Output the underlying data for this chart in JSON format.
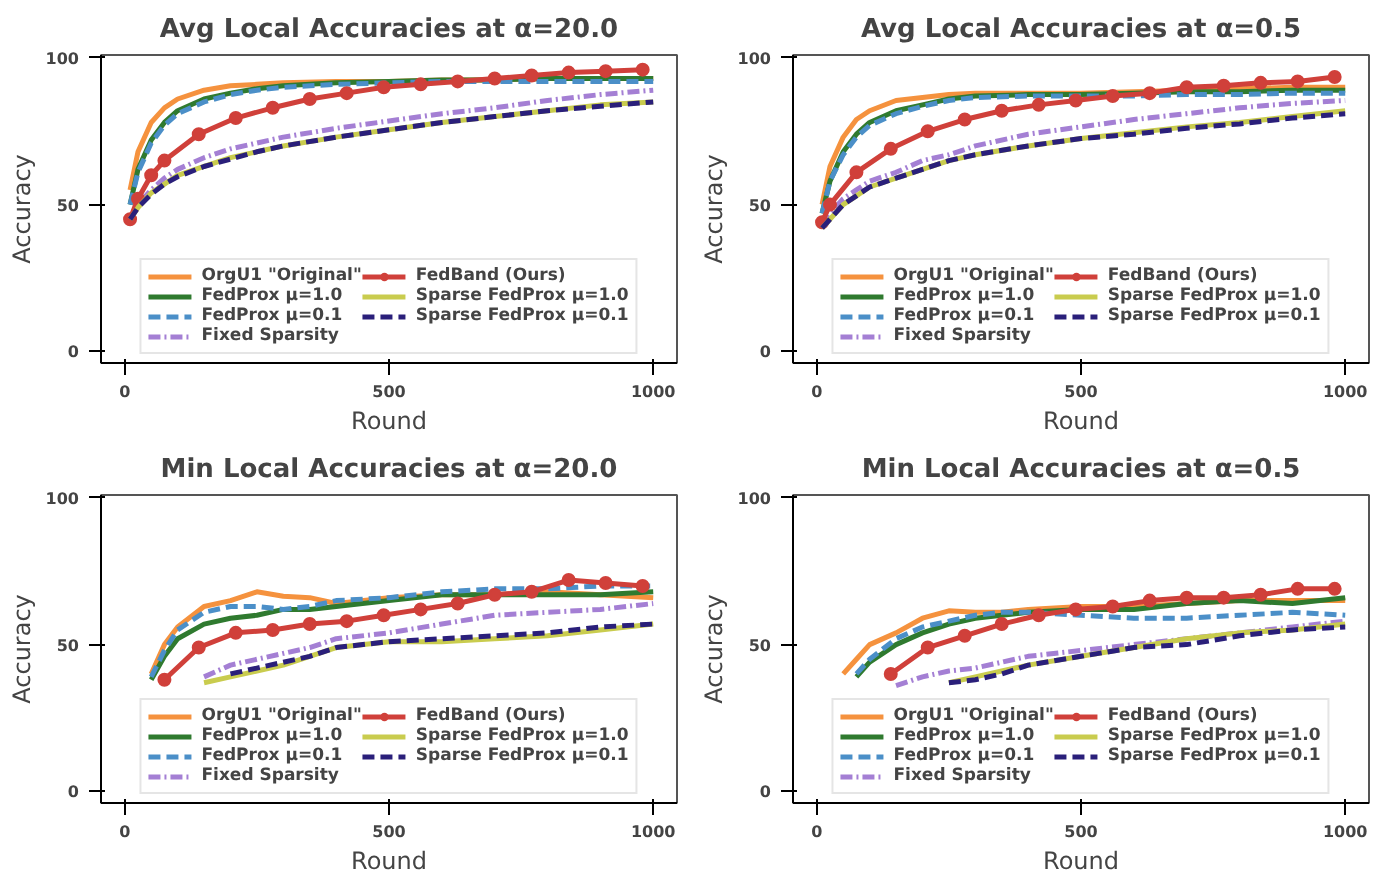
{
  "chart_data": [
    {
      "type": "line",
      "title": "Avg Local Accuracies at α=20.0",
      "xlabel": "Round",
      "ylabel": "Accuracy",
      "xlim": [
        -45,
        1045
      ],
      "ylim": [
        -4,
        101
      ],
      "xticks": [
        0,
        500,
        1000
      ],
      "yticks": [
        0,
        50,
        100
      ],
      "grid": false,
      "legend": "bottom",
      "x": [
        10,
        25,
        50,
        75,
        100,
        150,
        200,
        250,
        300,
        400,
        500,
        600,
        700,
        800,
        900,
        1000
      ],
      "series": [
        {
          "name": "OrgU1 \"Original\"",
          "color": "#f5923e",
          "line_style": "solid",
          "values": [
            55,
            68,
            78,
            83,
            86,
            89,
            90.5,
            91,
            91.5,
            92,
            92,
            92.5,
            92.5,
            93,
            93,
            93
          ]
        },
        {
          "name": "FedProx μ=1.0",
          "color": "#2f7a2f",
          "line_style": "solid",
          "values": [
            50,
            62,
            72,
            78,
            82,
            86,
            88,
            89.5,
            90.5,
            91.5,
            92,
            92.5,
            92.5,
            93,
            93,
            93
          ]
        },
        {
          "name": "FedProx μ=0.1",
          "color": "#4b8fc8",
          "line_style": "dashed",
          "values": [
            50,
            61,
            71,
            77,
            81,
            85,
            87.5,
            89,
            90,
            91,
            91.5,
            92,
            92,
            92,
            92,
            92
          ]
        },
        {
          "name": "Fixed Sparsity",
          "color": "#a47fd4",
          "line_style": "dashdot",
          "values": [
            45,
            50,
            55,
            59,
            62,
            66,
            69,
            71,
            73,
            76,
            78.5,
            81,
            83,
            85.5,
            87.5,
            89
          ]
        },
        {
          "name": "FedBand (Ours)",
          "color": "#d0403a",
          "line_style": "solid",
          "marker": "circle",
          "x": [
            10,
            25,
            50,
            75,
            140,
            210,
            280,
            350,
            420,
            490,
            560,
            630,
            700,
            770,
            840,
            910,
            980
          ],
          "values": [
            45,
            52,
            60,
            65,
            74,
            79.5,
            83,
            86,
            88,
            90,
            91,
            92,
            93,
            94,
            95,
            95.5,
            96
          ]
        },
        {
          "name": "Sparse FedProx μ=1.0",
          "color": "#c9cc4e",
          "line_style": "solid",
          "values": [
            45,
            49,
            54,
            57,
            60,
            63,
            66,
            68,
            70,
            73,
            75.5,
            78,
            80,
            82,
            84,
            85
          ]
        },
        {
          "name": "Sparse FedProx μ=0.1",
          "color": "#2a1f7a",
          "line_style": "dashed",
          "values": [
            45,
            49,
            53.5,
            57,
            59.5,
            63,
            65.5,
            68,
            70,
            73,
            75.5,
            78,
            80,
            82,
            83.5,
            85
          ]
        }
      ]
    },
    {
      "type": "line",
      "title": "Avg Local Accuracies at α=0.5",
      "xlabel": "Round",
      "ylabel": "Accuracy",
      "xlim": [
        -45,
        1045
      ],
      "ylim": [
        -4,
        101
      ],
      "xticks": [
        0,
        500,
        1000
      ],
      "yticks": [
        0,
        50,
        100
      ],
      "grid": false,
      "legend": "bottom",
      "x": [
        10,
        25,
        50,
        75,
        100,
        150,
        200,
        250,
        300,
        400,
        500,
        600,
        700,
        800,
        900,
        1000
      ],
      "series": [
        {
          "name": "OrgU1 \"Original\"",
          "color": "#f5923e",
          "line_style": "solid",
          "values": [
            50,
            63,
            73,
            79,
            82,
            85.5,
            86.5,
            87.5,
            88,
            88,
            88,
            88.5,
            89,
            89.5,
            90,
            90
          ]
        },
        {
          "name": "FedProx μ=1.0",
          "color": "#2f7a2f",
          "line_style": "solid",
          "values": [
            47,
            58,
            68,
            74,
            78,
            82,
            84,
            86,
            87,
            87.5,
            87.5,
            88,
            88.5,
            88.5,
            89,
            89
          ]
        },
        {
          "name": "FedProx μ=0.1",
          "color": "#4b8fc8",
          "line_style": "dashed",
          "values": [
            47,
            58,
            67,
            73,
            77,
            81,
            83.5,
            85.5,
            86.5,
            87,
            87,
            87,
            87.5,
            87.5,
            88,
            88
          ]
        },
        {
          "name": "Fixed Sparsity",
          "color": "#a47fd4",
          "line_style": "dashdot",
          "values": [
            43,
            47,
            52,
            55,
            58,
            61,
            65,
            67,
            70,
            74,
            76.5,
            79,
            81,
            83,
            84.5,
            85.5
          ]
        },
        {
          "name": "FedBand (Ours)",
          "color": "#d0403a",
          "line_style": "solid",
          "marker": "circle",
          "x": [
            10,
            25,
            75,
            140,
            210,
            280,
            350,
            420,
            490,
            560,
            630,
            700,
            770,
            840,
            910,
            980
          ],
          "values": [
            44,
            50,
            61,
            69,
            75,
            79,
            82,
            84,
            85.5,
            87,
            88,
            90,
            90.5,
            91.5,
            92,
            93.5
          ]
        },
        {
          "name": "Sparse FedProx μ=1.0",
          "color": "#c9cc4e",
          "line_style": "solid",
          "values": [
            42,
            45,
            50,
            53,
            56,
            59,
            62,
            65,
            67,
            70,
            72.5,
            74.5,
            76.5,
            78,
            80,
            82
          ]
        },
        {
          "name": "Sparse FedProx μ=0.1",
          "color": "#2a1f7a",
          "line_style": "dashed",
          "values": [
            42,
            45,
            50,
            53,
            56,
            59,
            62,
            65,
            67,
            70,
            72.5,
            74,
            76,
            77.5,
            79.5,
            81
          ]
        }
      ]
    },
    {
      "type": "line",
      "title": "Min Local Accuracies at α=20.0",
      "xlabel": "Round",
      "ylabel": "Accuracy",
      "xlim": [
        -45,
        1045
      ],
      "ylim": [
        -4,
        101
      ],
      "xticks": [
        0,
        500,
        1000
      ],
      "yticks": [
        0,
        50,
        100
      ],
      "grid": false,
      "legend": "bottom",
      "x": [
        50,
        75,
        100,
        150,
        200,
        250,
        300,
        350,
        400,
        500,
        600,
        700,
        800,
        900,
        1000
      ],
      "series": [
        {
          "name": "OrgU1 \"Original\"",
          "color": "#f5923e",
          "line_style": "solid",
          "values": [
            40,
            50,
            56,
            63,
            65,
            68,
            66.5,
            66,
            64,
            66,
            67,
            67,
            68,
            67,
            66
          ]
        },
        {
          "name": "FedProx μ=1.0",
          "color": "#2f7a2f",
          "line_style": "solid",
          "values": [
            38,
            46,
            52,
            57,
            59,
            60,
            62,
            62,
            63,
            65,
            67,
            67,
            67,
            67,
            68
          ]
        },
        {
          "name": "FedProx μ=0.1",
          "color": "#4b8fc8",
          "line_style": "dashed",
          "values": [
            39,
            48,
            55,
            61,
            63,
            63,
            62,
            63,
            65,
            66,
            68,
            69,
            69,
            70,
            70
          ]
        },
        {
          "name": "Fixed Sparsity",
          "color": "#a47fd4",
          "line_style": "dashdot",
          "values": [
            null,
            null,
            null,
            39,
            43,
            45,
            47,
            49,
            52,
            54,
            57,
            60,
            61,
            62,
            64
          ]
        },
        {
          "name": "FedBand (Ours)",
          "color": "#d0403a",
          "line_style": "solid",
          "marker": "circle",
          "x": [
            75,
            140,
            210,
            280,
            350,
            420,
            490,
            560,
            630,
            700,
            770,
            840,
            910,
            980
          ],
          "values": [
            38,
            49,
            54,
            55,
            57,
            58,
            60,
            62,
            64,
            67,
            68,
            72,
            71,
            70
          ]
        },
        {
          "name": "Sparse FedProx μ=1.0",
          "color": "#c9cc4e",
          "line_style": "solid",
          "values": [
            null,
            null,
            null,
            37,
            39,
            41,
            43,
            46,
            49,
            51,
            51,
            52,
            53,
            55,
            57
          ]
        },
        {
          "name": "Sparse FedProx μ=0.1",
          "color": "#2a1f7a",
          "line_style": "dashed",
          "values": [
            null,
            null,
            null,
            null,
            40,
            42,
            44,
            46,
            49,
            51,
            52,
            53,
            54,
            56,
            57
          ]
        }
      ]
    },
    {
      "type": "line",
      "title": "Min Local Accuracies at α=0.5",
      "xlabel": "Round",
      "ylabel": "Accuracy",
      "xlim": [
        -45,
        1045
      ],
      "ylim": [
        -4,
        101
      ],
      "xticks": [
        0,
        500,
        1000
      ],
      "yticks": [
        0,
        50,
        100
      ],
      "grid": false,
      "legend": "bottom",
      "x": [
        50,
        75,
        100,
        150,
        200,
        250,
        300,
        350,
        400,
        500,
        600,
        700,
        800,
        900,
        1000
      ],
      "series": [
        {
          "name": "OrgU1 \"Original\"",
          "color": "#f5923e",
          "line_style": "solid",
          "values": [
            40,
            45,
            50,
            54,
            59,
            61.5,
            61,
            61,
            62,
            63,
            63,
            64,
            65,
            65,
            65
          ]
        },
        {
          "name": "FedProx μ=1.0",
          "color": "#2f7a2f",
          "line_style": "solid",
          "values": [
            null,
            39,
            44,
            50,
            54,
            57,
            59,
            60,
            61,
            62,
            62,
            64,
            65,
            64,
            66
          ]
        },
        {
          "name": "FedProx μ=0.1",
          "color": "#4b8fc8",
          "line_style": "dashed",
          "values": [
            null,
            40,
            45,
            52,
            56,
            58,
            60,
            61,
            61,
            60,
            59,
            59,
            60,
            61,
            60
          ]
        },
        {
          "name": "Fixed Sparsity",
          "color": "#a47fd4",
          "line_style": "dashdot",
          "values": [
            null,
            null,
            null,
            36,
            39,
            41,
            42,
            44,
            46,
            48,
            50,
            52,
            54,
            56,
            58
          ]
        },
        {
          "name": "FedBand (Ours)",
          "color": "#d0403a",
          "line_style": "solid",
          "marker": "circle",
          "x": [
            140,
            210,
            280,
            350,
            420,
            490,
            560,
            630,
            700,
            770,
            840,
            910,
            980
          ],
          "values": [
            40,
            49,
            53,
            57,
            60,
            62,
            63,
            65,
            66,
            66,
            67,
            69,
            69
          ]
        },
        {
          "name": "Sparse FedProx μ=1.0",
          "color": "#c9cc4e",
          "line_style": "solid",
          "values": [
            null,
            null,
            null,
            null,
            null,
            37,
            39,
            41,
            43,
            46,
            49,
            52,
            54,
            55,
            57
          ]
        },
        {
          "name": "Sparse FedProx μ=0.1",
          "color": "#2a1f7a",
          "line_style": "dashed",
          "values": [
            null,
            null,
            null,
            null,
            null,
            37,
            38,
            40,
            43,
            46,
            49,
            50,
            53,
            55,
            56
          ]
        }
      ]
    }
  ]
}
